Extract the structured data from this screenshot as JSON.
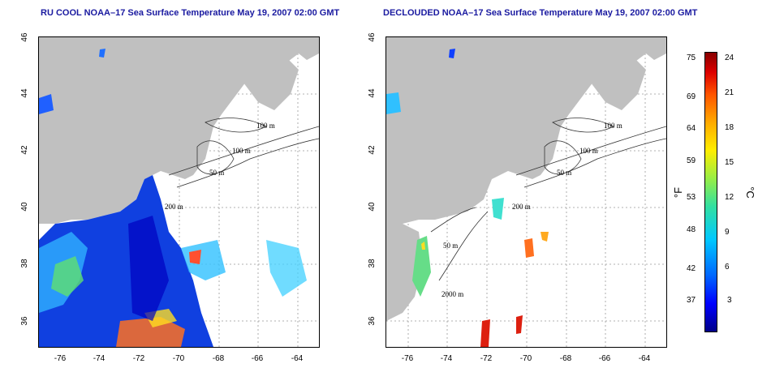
{
  "titles": {
    "left": "RU COOL NOAA–17 Sea Surface Temperature May 19, 2007 02:00 GMT",
    "right": "DECLOUDED NOAA–17 Sea Surface Temperature May 19, 2007 02:00 GMT"
  },
  "axes": {
    "x_ticks": [
      "-76",
      "-74",
      "-72",
      "-70",
      "-68",
      "-66",
      "-64"
    ],
    "y_ticks": [
      "36",
      "38",
      "40",
      "42",
      "44",
      "46"
    ]
  },
  "contour_labels": {
    "left": [
      "100 m",
      "100 m",
      "50 m",
      "200 m"
    ],
    "right": [
      "100 m",
      "100 m",
      "50 m",
      "200 m",
      "50 m",
      "2000 m"
    ]
  },
  "colorbar": {
    "fahrenheit_labels": [
      "75",
      "69",
      "64",
      "59",
      "53",
      "48",
      "42",
      "37"
    ],
    "celsius_labels": [
      "24",
      "21",
      "18",
      "15",
      "12",
      "9",
      "6",
      "3"
    ],
    "fahrenheit_unit": "°F",
    "celsius_unit": "°C",
    "colors": [
      "#000088",
      "#0000ff",
      "#00c8ff",
      "#99ee44",
      "#ffee00",
      "#ff5500",
      "#880000"
    ]
  },
  "colors": {
    "land": "#c0c0c0",
    "title": "#1a1aa0",
    "grid": "#999999"
  }
}
